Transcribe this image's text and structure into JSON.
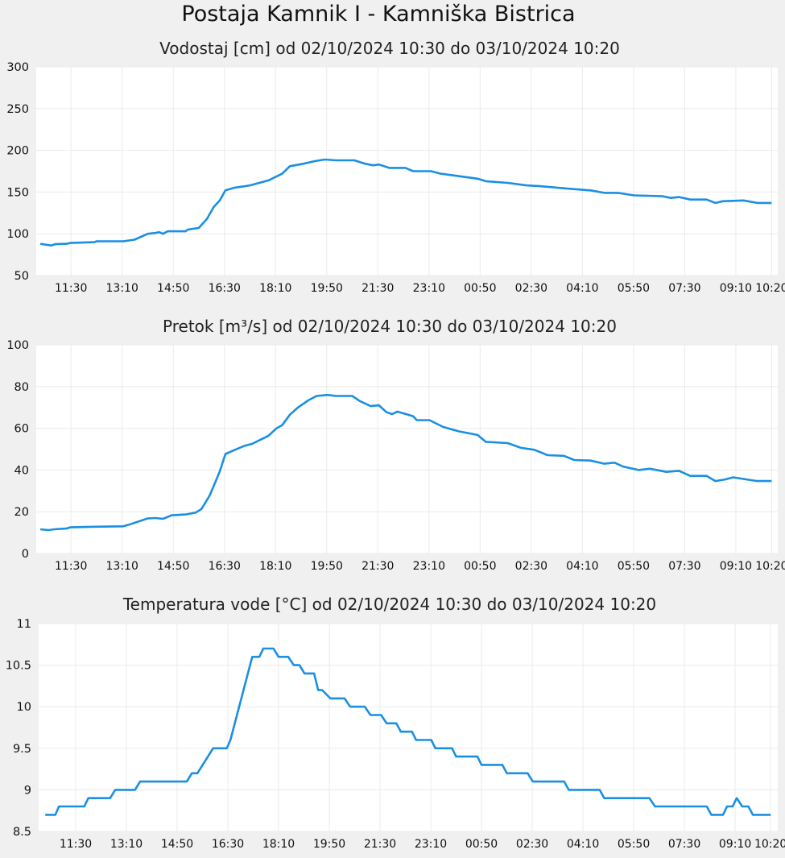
{
  "title": "Postaja Kamnik I - Kamniška Bistrica",
  "chart_data": [
    {
      "type": "line",
      "title": "Vodostaj [cm] od 02/10/2024 10:30 do 03/10/2024 10:20",
      "x_unit": "minutes since 02/10/2024 10:30",
      "xlim": [
        -8,
        1442
      ],
      "ylim": [
        50,
        300
      ],
      "yticks": [
        50,
        100,
        150,
        200,
        250,
        300
      ],
      "yticklabels": [
        "50",
        "100",
        "150",
        "200",
        "250",
        "300"
      ],
      "xticks": [
        60,
        160,
        260,
        360,
        460,
        560,
        660,
        760,
        860,
        960,
        1060,
        1160,
        1260,
        1360,
        1430
      ],
      "xticklabels": [
        "11:30",
        "13:10",
        "14:50",
        "16:30",
        "18:10",
        "19:50",
        "21:30",
        "23:10",
        "00:50",
        "02:30",
        "04:10",
        "05:50",
        "07:30",
        "09:10",
        "10:20"
      ],
      "grid": true,
      "series": [
        {
          "name": "Vodostaj",
          "color": "#1a8fe3",
          "points": [
            [
              0,
              88
            ],
            [
              21,
              86
            ],
            [
              29,
              87.5
            ],
            [
              52,
              88
            ],
            [
              58,
              89
            ],
            [
              106,
              90
            ],
            [
              110,
              91
            ],
            [
              162,
              91
            ],
            [
              184,
              93
            ],
            [
              210,
              100
            ],
            [
              225,
              101
            ],
            [
              232,
              102
            ],
            [
              240,
              100
            ],
            [
              249,
              103
            ],
            [
              284,
              103
            ],
            [
              288,
              105
            ],
            [
              310,
              107
            ],
            [
              326,
              118
            ],
            [
              339,
              132
            ],
            [
              351,
              140
            ],
            [
              362,
              152
            ],
            [
              378,
              155
            ],
            [
              410,
              158
            ],
            [
              446,
              164
            ],
            [
              473,
              172
            ],
            [
              488,
              181
            ],
            [
              515,
              184
            ],
            [
              536,
              187
            ],
            [
              556,
              189
            ],
            [
              578,
              188
            ],
            [
              614,
              188
            ],
            [
              635,
              184
            ],
            [
              651,
              182
            ],
            [
              662,
              183
            ],
            [
              682,
              179
            ],
            [
              714,
              179
            ],
            [
              729,
              175
            ],
            [
              764,
              175
            ],
            [
              783,
              172
            ],
            [
              819,
              169
            ],
            [
              855,
              166
            ],
            [
              871,
              163
            ],
            [
              914,
              161
            ],
            [
              950,
              158
            ],
            [
              977,
              157
            ],
            [
              1035,
              154
            ],
            [
              1076,
              152
            ],
            [
              1103,
              149
            ],
            [
              1129,
              149
            ],
            [
              1161,
              146
            ],
            [
              1217,
              145
            ],
            [
              1233,
              143
            ],
            [
              1249,
              144
            ],
            [
              1271,
              141
            ],
            [
              1303,
              141
            ],
            [
              1320,
              137
            ],
            [
              1334,
              139
            ],
            [
              1375,
              140
            ],
            [
              1402,
              137
            ],
            [
              1430,
              137
            ]
          ]
        }
      ]
    },
    {
      "type": "line",
      "title": "Pretok [m³/s] od 02/10/2024 10:30 do 03/10/2024 10:20",
      "x_unit": "minutes since 02/10/2024 10:30",
      "xlim": [
        -8,
        1442
      ],
      "ylim": [
        0,
        100
      ],
      "yticks": [
        0,
        20,
        40,
        60,
        80,
        100
      ],
      "yticklabels": [
        "0",
        "20",
        "40",
        "60",
        "80",
        "100"
      ],
      "xticks": [
        60,
        160,
        260,
        360,
        460,
        560,
        660,
        760,
        860,
        960,
        1060,
        1160,
        1260,
        1360,
        1430
      ],
      "xticklabels": [
        "11:30",
        "13:10",
        "14:50",
        "16:30",
        "18:10",
        "19:50",
        "21:30",
        "23:10",
        "00:50",
        "02:30",
        "04:10",
        "05:50",
        "07:30",
        "09:10",
        "10:20"
      ],
      "grid": true,
      "series": [
        {
          "name": "Pretok",
          "color": "#1a8fe3",
          "points": [
            [
              0,
              11.6
            ],
            [
              16,
              11.2
            ],
            [
              27,
              11.6
            ],
            [
              52,
              12
            ],
            [
              58,
              12.5
            ],
            [
              106,
              12.8
            ],
            [
              162,
              13
            ],
            [
              173,
              13.8
            ],
            [
              210,
              16.8
            ],
            [
              225,
              17
            ],
            [
              240,
              16.6
            ],
            [
              257,
              18.3
            ],
            [
              284,
              18.7
            ],
            [
              304,
              19.6
            ],
            [
              315,
              21.3
            ],
            [
              331,
              27.7
            ],
            [
              342,
              34
            ],
            [
              351,
              39.4
            ],
            [
              362,
              47.7
            ],
            [
              378,
              49.4
            ],
            [
              399,
              51.6
            ],
            [
              414,
              52.5
            ],
            [
              446,
              56.4
            ],
            [
              462,
              60
            ],
            [
              473,
              61.5
            ],
            [
              488,
              66.5
            ],
            [
              504,
              70
            ],
            [
              525,
              73.5
            ],
            [
              540,
              75.5
            ],
            [
              562,
              76
            ],
            [
              578,
              75.5
            ],
            [
              610,
              75.5
            ],
            [
              625,
              73
            ],
            [
              646,
              70.6
            ],
            [
              662,
              71
            ],
            [
              677,
              67.7
            ],
            [
              688,
              66.8
            ],
            [
              698,
              68
            ],
            [
              729,
              65.8
            ],
            [
              736,
              63.9
            ],
            [
              761,
              63.9
            ],
            [
              788,
              60.6
            ],
            [
              819,
              58.5
            ],
            [
              855,
              56.8
            ],
            [
              871,
              53.5
            ],
            [
              914,
              52.9
            ],
            [
              940,
              50.6
            ],
            [
              966,
              49.7
            ],
            [
              992,
              47.1
            ],
            [
              1024,
              46.8
            ],
            [
              1044,
              44.8
            ],
            [
              1076,
              44.5
            ],
            [
              1103,
              43
            ],
            [
              1123,
              43.5
            ],
            [
              1139,
              41.7
            ],
            [
              1170,
              40
            ],
            [
              1192,
              40.6
            ],
            [
              1224,
              39.1
            ],
            [
              1249,
              39.6
            ],
            [
              1271,
              37.2
            ],
            [
              1303,
              37.2
            ],
            [
              1320,
              34.7
            ],
            [
              1339,
              35.5
            ],
            [
              1355,
              36.5
            ],
            [
              1381,
              35.5
            ],
            [
              1402,
              34.7
            ],
            [
              1430,
              34.7
            ]
          ]
        }
      ]
    },
    {
      "type": "line",
      "title": "Temperatura vode [°C] od 02/10/2024 10:30 do 03/10/2024 10:20",
      "x_unit": "minutes since 02/10/2024 10:30",
      "xlim": [
        -13,
        1444
      ],
      "ylim": [
        8.5,
        11
      ],
      "yticks": [
        8.5,
        9,
        9.5,
        10,
        10.5,
        11
      ],
      "yticklabels": [
        "8.5",
        "9",
        "9.5",
        "10",
        "10.5",
        "11"
      ],
      "xticks": [
        60,
        160,
        260,
        360,
        460,
        560,
        660,
        760,
        860,
        960,
        1060,
        1160,
        1260,
        1360,
        1430
      ],
      "xticklabels": [
        "11:30",
        "13:10",
        "14:50",
        "16:30",
        "18:10",
        "19:50",
        "21:30",
        "23:10",
        "00:50",
        "02:30",
        "04:10",
        "05:50",
        "07:30",
        "09:10",
        "10:20"
      ],
      "grid": true,
      "series": [
        {
          "name": "Temperatura vode",
          "color": "#1a8fe3",
          "points": [
            [
              0,
              8.7
            ],
            [
              20,
              8.7
            ],
            [
              27,
              8.8
            ],
            [
              77,
              8.8
            ],
            [
              85,
              8.9
            ],
            [
              128,
              8.9
            ],
            [
              138,
              9.0
            ],
            [
              177,
              9.0
            ],
            [
              187,
              9.1
            ],
            [
              279,
              9.1
            ],
            [
              289,
              9.2
            ],
            [
              300,
              9.2
            ],
            [
              331,
              9.5
            ],
            [
              358,
              9.5
            ],
            [
              365,
              9.6
            ],
            [
              408,
              10.6
            ],
            [
              422,
              10.6
            ],
            [
              430,
              10.7
            ],
            [
              450,
              10.7
            ],
            [
              460,
              10.6
            ],
            [
              479,
              10.6
            ],
            [
              490,
              10.5
            ],
            [
              501,
              10.5
            ],
            [
              511,
              10.4
            ],
            [
              530,
              10.4
            ],
            [
              538,
              10.2
            ],
            [
              546,
              10.2
            ],
            [
              562,
              10.1
            ],
            [
              590,
              10.1
            ],
            [
              601,
              10.0
            ],
            [
              630,
              10.0
            ],
            [
              641,
              9.9
            ],
            [
              662,
              9.9
            ],
            [
              673,
              9.8
            ],
            [
              692,
              9.8
            ],
            [
              701,
              9.7
            ],
            [
              723,
              9.7
            ],
            [
              731,
              9.6
            ],
            [
              761,
              9.6
            ],
            [
              769,
              9.5
            ],
            [
              802,
              9.5
            ],
            [
              810,
              9.4
            ],
            [
              852,
              9.4
            ],
            [
              860,
              9.3
            ],
            [
              901,
              9.3
            ],
            [
              910,
              9.2
            ],
            [
              951,
              9.2
            ],
            [
              961,
              9.1
            ],
            [
              1023,
              9.1
            ],
            [
              1032,
              9.0
            ],
            [
              1093,
              9.0
            ],
            [
              1102,
              8.9
            ],
            [
              1191,
              8.9
            ],
            [
              1202,
              8.8
            ],
            [
              1304,
              8.8
            ],
            [
              1313,
              8.7
            ],
            [
              1336,
              8.7
            ],
            [
              1344,
              8.8
            ],
            [
              1355,
              8.8
            ],
            [
              1363,
              8.9
            ],
            [
              1374,
              8.8
            ],
            [
              1386,
              8.8
            ],
            [
              1395,
              8.7
            ],
            [
              1430,
              8.7
            ]
          ]
        }
      ]
    }
  ]
}
